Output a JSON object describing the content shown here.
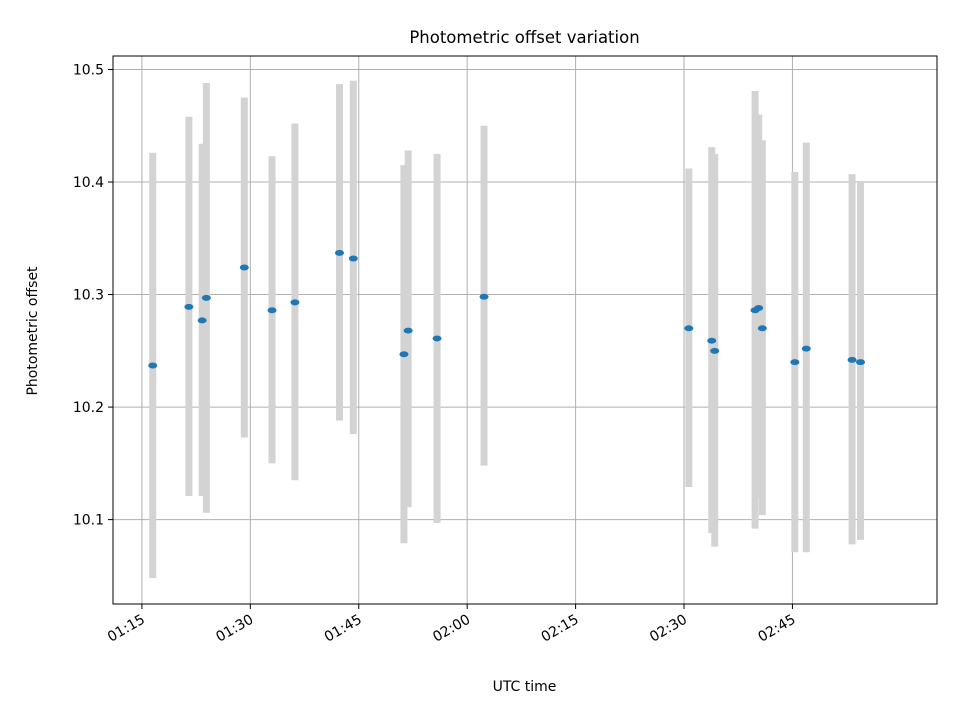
{
  "chart_data": {
    "type": "scatter",
    "title": "Photometric offset variation",
    "xlabel": "UTC time",
    "ylabel": "Photometric offset",
    "xlim": [
      "01:11",
      "03:05"
    ],
    "ylim": [
      10.025,
      10.512
    ],
    "x_ticks": [
      "01:15",
      "01:30",
      "01:45",
      "02:00",
      "02:15",
      "02:30",
      "02:45"
    ],
    "y_ticks": [
      "10.1",
      "10.2",
      "10.3",
      "10.4",
      "10.5"
    ],
    "grid": true,
    "colors": {
      "point": "#1f77b4",
      "errorbar": "#d3d3d3",
      "grid": "#b0b0b0",
      "axes": "#000000"
    },
    "points": [
      {
        "time": "01:16:30",
        "y": 10.237,
        "ymin": 10.048,
        "ymax": 10.426
      },
      {
        "time": "01:21:30",
        "y": 10.289,
        "ymin": 10.121,
        "ymax": 10.458
      },
      {
        "time": "01:23:20",
        "y": 10.277,
        "ymin": 10.121,
        "ymax": 10.434
      },
      {
        "time": "01:23:55",
        "y": 10.297,
        "ymin": 10.106,
        "ymax": 10.488
      },
      {
        "time": "01:29:10",
        "y": 10.324,
        "ymin": 10.173,
        "ymax": 10.475
      },
      {
        "time": "01:33:00",
        "y": 10.286,
        "ymin": 10.15,
        "ymax": 10.423
      },
      {
        "time": "01:36:10",
        "y": 10.293,
        "ymin": 10.135,
        "ymax": 10.452
      },
      {
        "time": "01:42:20",
        "y": 10.337,
        "ymin": 10.188,
        "ymax": 10.487
      },
      {
        "time": "01:44:15",
        "y": 10.332,
        "ymin": 10.176,
        "ymax": 10.49
      },
      {
        "time": "01:51:15",
        "y": 10.247,
        "ymin": 10.079,
        "ymax": 10.415
      },
      {
        "time": "01:51:50",
        "y": 10.268,
        "ymin": 10.111,
        "ymax": 10.428
      },
      {
        "time": "01:55:50",
        "y": 10.261,
        "ymin": 10.097,
        "ymax": 10.425
      },
      {
        "time": "02:02:20",
        "y": 10.298,
        "ymin": 10.148,
        "ymax": 10.45
      },
      {
        "time": "02:30:40",
        "y": 10.27,
        "ymin": 10.129,
        "ymax": 10.412
      },
      {
        "time": "02:33:50",
        "y": 10.259,
        "ymin": 10.088,
        "ymax": 10.431
      },
      {
        "time": "02:34:15",
        "y": 10.25,
        "ymin": 10.076,
        "ymax": 10.425
      },
      {
        "time": "02:39:50",
        "y": 10.286,
        "ymin": 10.092,
        "ymax": 10.481
      },
      {
        "time": "02:40:20",
        "y": 10.288,
        "ymin": 10.119,
        "ymax": 10.46
      },
      {
        "time": "02:40:50",
        "y": 10.27,
        "ymin": 10.104,
        "ymax": 10.437
      },
      {
        "time": "02:45:20",
        "y": 10.24,
        "ymin": 10.071,
        "ymax": 10.409
      },
      {
        "time": "02:46:55",
        "y": 10.252,
        "ymin": 10.071,
        "ymax": 10.435
      },
      {
        "time": "02:53:15",
        "y": 10.242,
        "ymin": 10.078,
        "ymax": 10.407
      },
      {
        "time": "02:54:25",
        "y": 10.24,
        "ymin": 10.082,
        "ymax": 10.401
      }
    ]
  }
}
